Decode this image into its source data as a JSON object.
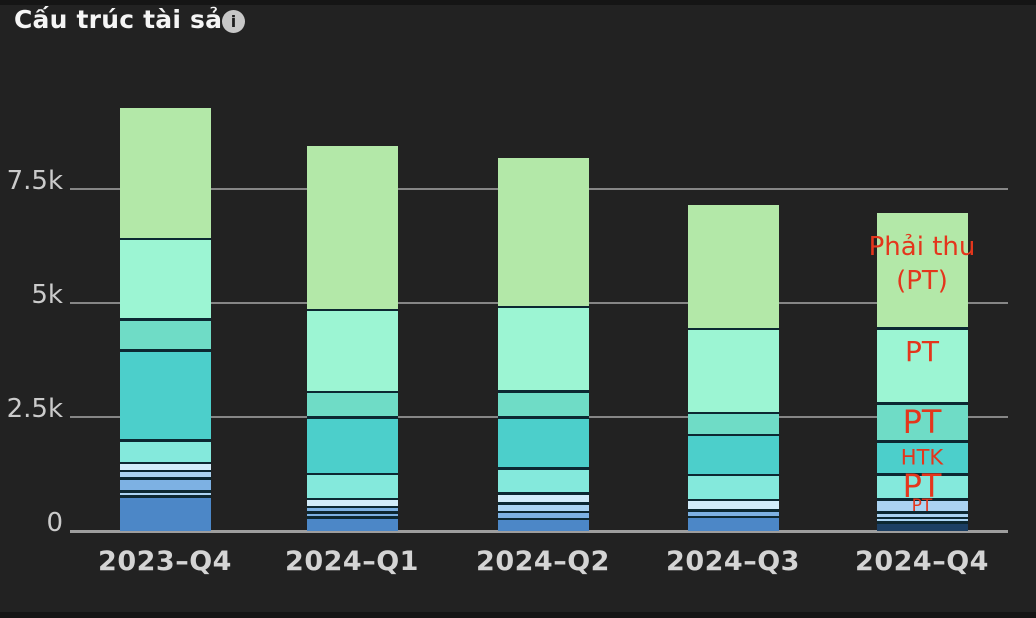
{
  "header": {
    "title": "Cấu trúc tài sản",
    "info_icon": "i"
  },
  "colors": {
    "background": "#222222",
    "edge_strip": "#151515",
    "title_text": "#f5f5f5",
    "info_icon_bg": "#c7c7c7",
    "gridline": "#868686",
    "baseline": "#9e9e9e",
    "y_tick_label": "#cbcbcb",
    "x_tick_label": "#d4d4d4",
    "annotation_red": "#e4361c"
  },
  "chart_data": {
    "type": "bar",
    "stacked": true,
    "title": "Cấu trúc tài sản",
    "xlabel": "",
    "ylabel": "",
    "grid": true,
    "legend": "none",
    "ylim": [
      0,
      9600
    ],
    "y_ticks": [
      {
        "label": "7.5k",
        "value": 7500
      },
      {
        "label": "5k",
        "value": 5000
      },
      {
        "label": "2.5k",
        "value": 2500
      },
      {
        "label": "0",
        "value": 0
      }
    ],
    "categories": [
      "2023–Q4",
      "2024–Q1",
      "2024–Q2",
      "2024–Q3",
      "2024–Q4"
    ],
    "bar_totals": [
      9280,
      8450,
      8180,
      7150,
      6980
    ],
    "annotation_color": "#e4361c",
    "palette": {
      "green": "#b3e8a8",
      "mint": "#9cf5d3",
      "tealgreen": "#6fdcc6",
      "teal": "#4ccfcb",
      "lightteal": "#84e9dc",
      "paleblue": "#d2ecfa",
      "lightblue": "#abd3f2",
      "midblue": "#7db1e3",
      "steelblue": "#4c87c7",
      "navy": "#1c3f63",
      "sep": "#0c2832"
    },
    "bars": [
      {
        "category": "2023–Q4",
        "segments": [
          {
            "c": "steelblue",
            "v": 725
          },
          {
            "c": "sep",
            "v": 55
          },
          {
            "c": "lightblue",
            "v": 65
          },
          {
            "c": "sep",
            "v": 55
          },
          {
            "c": "midblue",
            "v": 230
          },
          {
            "c": "sep",
            "v": 55
          },
          {
            "c": "lightblue",
            "v": 110
          },
          {
            "c": "sep",
            "v": 55
          },
          {
            "c": "paleblue",
            "v": 120
          },
          {
            "c": "sep",
            "v": 55
          },
          {
            "c": "lightteal",
            "v": 435
          },
          {
            "c": "sep",
            "v": 55
          },
          {
            "c": "teal",
            "v": 1920
          },
          {
            "c": "sep",
            "v": 55
          },
          {
            "c": "tealgreen",
            "v": 625
          },
          {
            "c": "sep",
            "v": 55
          },
          {
            "c": "mint",
            "v": 1710
          },
          {
            "c": "sep",
            "v": 55
          },
          {
            "c": "green",
            "v": 2845
          }
        ]
      },
      {
        "category": "2024–Q1",
        "segments": [
          {
            "c": "steelblue",
            "v": 265
          },
          {
            "c": "sep",
            "v": 55
          },
          {
            "c": "midblue",
            "v": 55
          },
          {
            "c": "sep",
            "v": 55
          },
          {
            "c": "midblue",
            "v": 75
          },
          {
            "c": "sep",
            "v": 55
          },
          {
            "c": "paleblue",
            "v": 120
          },
          {
            "c": "sep",
            "v": 55
          },
          {
            "c": "lightteal",
            "v": 495
          },
          {
            "c": "sep",
            "v": 55
          },
          {
            "c": "teal",
            "v": 1175
          },
          {
            "c": "sep",
            "v": 55
          },
          {
            "c": "tealgreen",
            "v": 515
          },
          {
            "c": "sep",
            "v": 55
          },
          {
            "c": "mint",
            "v": 1745
          },
          {
            "c": "sep",
            "v": 55
          },
          {
            "c": "green",
            "v": 3565
          }
        ]
      },
      {
        "category": "2024–Q2",
        "segments": [
          {
            "c": "steelblue",
            "v": 240
          },
          {
            "c": "sep",
            "v": 55
          },
          {
            "c": "midblue",
            "v": 90
          },
          {
            "c": "sep",
            "v": 55
          },
          {
            "c": "lightblue",
            "v": 140
          },
          {
            "c": "sep",
            "v": 55
          },
          {
            "c": "paleblue",
            "v": 165
          },
          {
            "c": "sep",
            "v": 55
          },
          {
            "c": "lightteal",
            "v": 495
          },
          {
            "c": "sep",
            "v": 55
          },
          {
            "c": "teal",
            "v": 1065
          },
          {
            "c": "sep",
            "v": 55
          },
          {
            "c": "tealgreen",
            "v": 515
          },
          {
            "c": "sep",
            "v": 55
          },
          {
            "c": "mint",
            "v": 1800
          },
          {
            "c": "sep",
            "v": 55
          },
          {
            "c": "green",
            "v": 3230
          }
        ]
      },
      {
        "category": "2024–Q3",
        "segments": [
          {
            "c": "steelblue",
            "v": 285
          },
          {
            "c": "sep",
            "v": 55
          },
          {
            "c": "midblue",
            "v": 80
          },
          {
            "c": "sep",
            "v": 55
          },
          {
            "c": "paleblue",
            "v": 175
          },
          {
            "c": "sep",
            "v": 55
          },
          {
            "c": "lightteal",
            "v": 495
          },
          {
            "c": "sep",
            "v": 55
          },
          {
            "c": "teal",
            "v": 825
          },
          {
            "c": "sep",
            "v": 55
          },
          {
            "c": "tealgreen",
            "v": 430
          },
          {
            "c": "sep",
            "v": 55
          },
          {
            "c": "mint",
            "v": 1790
          },
          {
            "c": "sep",
            "v": 55
          },
          {
            "c": "green",
            "v": 2685
          }
        ]
      },
      {
        "category": "2024–Q4",
        "segments": [
          {
            "c": "navy",
            "v": 155
          },
          {
            "c": "sep",
            "v": 55
          },
          {
            "c": "lightblue",
            "v": 45
          },
          {
            "c": "sep",
            "v": 55
          },
          {
            "c": "lightblue",
            "v": 65
          },
          {
            "c": "sep",
            "v": 55
          },
          {
            "c": "lightblue",
            "v": 230,
            "label": "PT",
            "size": 17
          },
          {
            "c": "sep",
            "v": 55
          },
          {
            "c": "lightteal",
            "v": 495,
            "label": "PT",
            "size": 32
          },
          {
            "c": "sep",
            "v": 55
          },
          {
            "c": "teal",
            "v": 670,
            "label": "HTK",
            "size": 21
          },
          {
            "c": "sep",
            "v": 55
          },
          {
            "c": "tealgreen",
            "v": 780,
            "label": "PT",
            "size": 32
          },
          {
            "c": "sep",
            "v": 55
          },
          {
            "c": "mint",
            "v": 1590,
            "label": "PT",
            "size": 28,
            "dy": -14
          },
          {
            "c": "sep",
            "v": 55
          },
          {
            "c": "green",
            "v": 2510,
            "label": "Phải thu\n(PT)",
            "size": 26,
            "dy": -5
          }
        ]
      }
    ]
  }
}
